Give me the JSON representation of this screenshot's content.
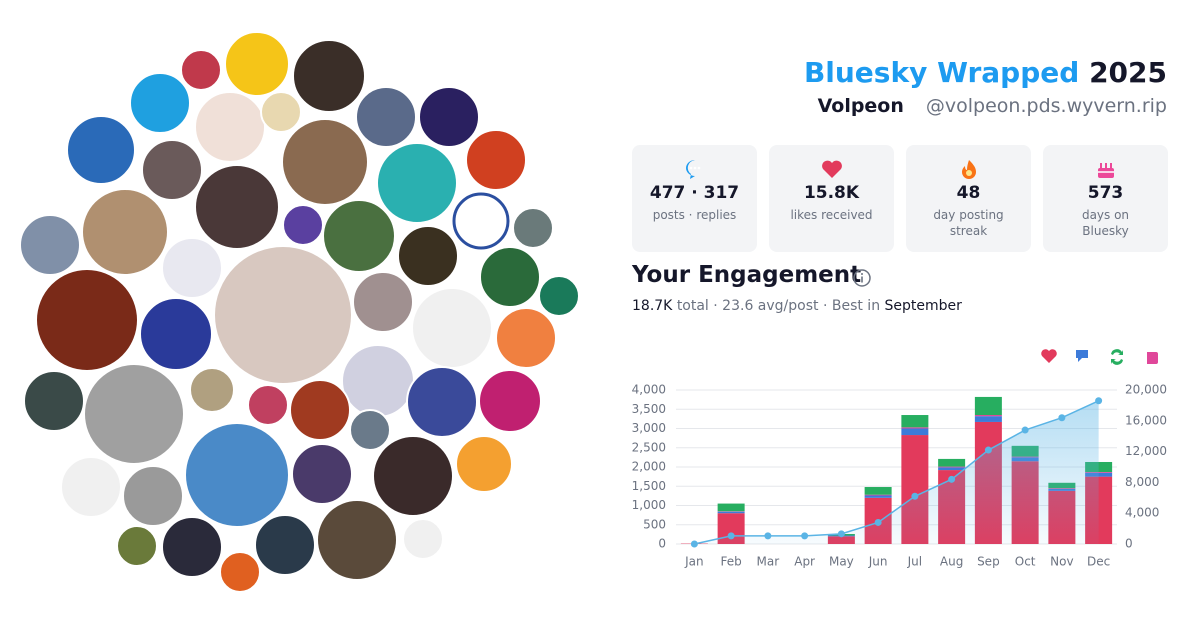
{
  "header": {
    "title": "Bluesky Wrapped",
    "year": "2025",
    "name": "Volpeon",
    "handle": "@volpeon.pds.wyvern.rip"
  },
  "stats": [
    {
      "value": "477 · 317",
      "label": "posts · replies"
    },
    {
      "value": "15.8K",
      "label": "likes received"
    },
    {
      "value": "48",
      "label": "day posting streak"
    },
    {
      "value": "573",
      "label": "days on Bluesky"
    }
  ],
  "engagement": {
    "title": "Your Engagement",
    "summary": [
      "18.7K",
      "total · 23.6 avg/post · Best in",
      "September"
    ]
  },
  "chart_data": {
    "type": "bar",
    "categories": [
      "Jan",
      "Feb",
      "Mar",
      "Apr",
      "May",
      "Jun",
      "Jul",
      "Aug",
      "Sep",
      "Oct",
      "Nov",
      "Dec"
    ],
    "stacked": true,
    "series": [
      {
        "color": "#e23a5c",
        "values": [
          10,
          800,
          0,
          0,
          200,
          1200,
          2830,
          1920,
          3170,
          2150,
          1380,
          1750
        ]
      },
      {
        "color": "#3d7bd9",
        "values": [
          0,
          40,
          0,
          0,
          20,
          60,
          170,
          70,
          150,
          100,
          50,
          100
        ]
      },
      {
        "color": "#e0479a",
        "values": [
          0,
          10,
          0,
          0,
          0,
          20,
          30,
          20,
          30,
          20,
          20,
          20
        ]
      },
      {
        "color": "#27ae60",
        "values": [
          0,
          200,
          0,
          0,
          40,
          200,
          320,
          200,
          470,
          280,
          140,
          260
        ]
      },
      {
        "type": "line",
        "axis": "y2",
        "color": "#5ab4e5",
        "values": [
          0,
          1060,
          1060,
          1060,
          1320,
          2800,
          6200,
          8400,
          12200,
          14800,
          16400,
          18600
        ]
      }
    ],
    "ylim": [
      0,
      4000
    ],
    "yticks": [
      0,
      500,
      {
        "value": 1000,
        "label": "1,000"
      },
      {
        "value": 1500,
        "label": "1,500"
      },
      {
        "value": 2000,
        "label": "2,000"
      },
      {
        "value": 2500,
        "label": "2,500"
      },
      {
        "value": 3000,
        "label": "3,000"
      },
      {
        "value": 3500,
        "label": "3,500"
      },
      {
        "value": 4000,
        "label": "4,000"
      }
    ],
    "y2lim": [
      0,
      20000
    ],
    "y2ticks": [
      0,
      {
        "value": 4000,
        "label": "4,000"
      },
      {
        "value": 8000,
        "label": "8,000"
      },
      {
        "value": 12000,
        "label": "12,000"
      },
      {
        "value": 16000,
        "label": "16,000"
      },
      {
        "value": 20000,
        "label": "20,000"
      }
    ],
    "grid": true
  }
}
